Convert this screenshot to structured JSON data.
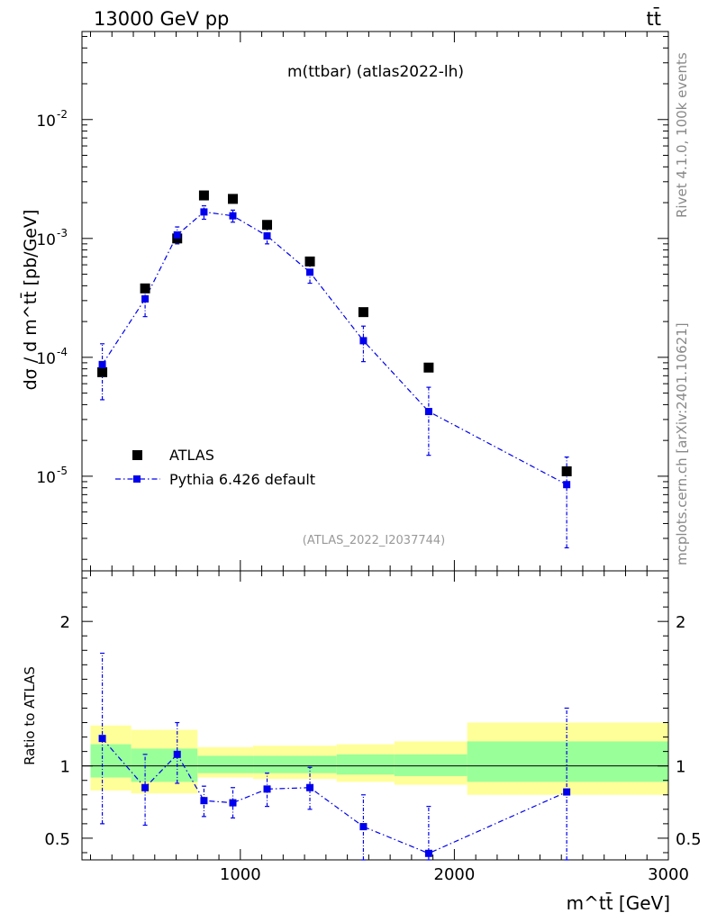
{
  "header": {
    "left": "13000 GeV pp",
    "right": "tt̄"
  },
  "side": {
    "rivet": "Rivet 4.1.0,  100k events",
    "mcplots": "mcplots.cern.ch [arXiv:2401.10621]"
  },
  "chart_data": [
    {
      "type": "scatter",
      "panel": "main",
      "title": "m(ttbar) (atlas2022-lh)",
      "analysis_label": "(ATLAS_2022_I2037744)",
      "ylabel": "dσ / d m^tt̄ [pb/GeV]",
      "yscale": "log",
      "xlim": [
        260,
        3000
      ],
      "ylim": [
        1.6e-06,
        0.055
      ],
      "ytick_labels": [
        {
          "exp": "-5",
          "value": 1e-05
        },
        {
          "exp": "-4",
          "value": 0.0001
        },
        {
          "exp": "-3",
          "value": 0.001
        },
        {
          "exp": "-2",
          "value": 0.01
        }
      ],
      "legend_position": "lower-left",
      "series": [
        {
          "name": "ATLAS",
          "color": "#000000",
          "points": [
            {
              "x": 355,
              "y": 7.5e-05
            },
            {
              "x": 555,
              "y": 0.00038
            },
            {
              "x": 705,
              "y": 0.001
            },
            {
              "x": 830,
              "y": 0.0023
            },
            {
              "x": 965,
              "y": 0.00215
            },
            {
              "x": 1125,
              "y": 0.0013
            },
            {
              "x": 1325,
              "y": 0.00064
            },
            {
              "x": 1575,
              "y": 0.00024
            },
            {
              "x": 1880,
              "y": 8.2e-05
            },
            {
              "x": 2525,
              "y": 1.1e-05
            }
          ]
        },
        {
          "name": "Pythia 6.426 default",
          "color": "#0000ee",
          "points": [
            {
              "x": 355,
              "y": 8.7e-05,
              "lo": 4.4e-05,
              "hi": 0.00013
            },
            {
              "x": 555,
              "y": 0.00031,
              "lo": 0.00022,
              "hi": 0.00039
            },
            {
              "x": 705,
              "y": 0.00107,
              "lo": 0.0009,
              "hi": 0.00125
            },
            {
              "x": 830,
              "y": 0.00167,
              "lo": 0.00145,
              "hi": 0.00188
            },
            {
              "x": 965,
              "y": 0.00155,
              "lo": 0.00137,
              "hi": 0.00173
            },
            {
              "x": 1125,
              "y": 0.00105,
              "lo": 0.0009,
              "hi": 0.0012
            },
            {
              "x": 1325,
              "y": 0.00052,
              "lo": 0.00042,
              "hi": 0.00062
            },
            {
              "x": 1575,
              "y": 0.000138,
              "lo": 9.2e-05,
              "hi": 0.000183
            },
            {
              "x": 1880,
              "y": 3.5e-05,
              "lo": 1.5e-05,
              "hi": 5.6e-05
            },
            {
              "x": 2525,
              "y": 8.5e-06,
              "lo": 2.5e-06,
              "hi": 1.45e-05
            }
          ]
        }
      ]
    },
    {
      "type": "scatter",
      "panel": "ratio",
      "ylabel": "Ratio to ATLAS",
      "xlabel": "m^tt̄ [GeV]",
      "xlim": [
        260,
        3000
      ],
      "ylim": [
        0.35,
        2.35
      ],
      "xticks": [
        1000,
        2000,
        3000
      ],
      "xtick_labels": [
        "1000",
        "2000",
        "3000"
      ],
      "yticks": [
        0.5,
        1,
        2
      ],
      "ytick_labels": [
        "0.5",
        "1",
        "2"
      ],
      "uncertainty_bands": [
        {
          "x0": 300,
          "x1": 490,
          "inner": [
            0.92,
            1.15
          ],
          "outer": [
            0.83,
            1.28
          ]
        },
        {
          "x0": 490,
          "x1": 800,
          "inner": [
            0.89,
            1.12
          ],
          "outer": [
            0.81,
            1.25
          ]
        },
        {
          "x0": 800,
          "x1": 1060,
          "inner": [
            0.95,
            1.07
          ],
          "outer": [
            0.92,
            1.13
          ]
        },
        {
          "x0": 1060,
          "x1": 1450,
          "inner": [
            0.95,
            1.07
          ],
          "outer": [
            0.91,
            1.14
          ]
        },
        {
          "x0": 1450,
          "x1": 1720,
          "inner": [
            0.94,
            1.08
          ],
          "outer": [
            0.89,
            1.15
          ]
        },
        {
          "x0": 1720,
          "x1": 2060,
          "inner": [
            0.93,
            1.08
          ],
          "outer": [
            0.87,
            1.17
          ]
        },
        {
          "x0": 2060,
          "x1": 3000,
          "inner": [
            0.89,
            1.17
          ],
          "outer": [
            0.8,
            1.3
          ]
        }
      ],
      "band_colors": {
        "inner": "#99ff99",
        "outer": "#ffff99"
      },
      "series": [
        {
          "name": "Pythia 6.426 default / ATLAS",
          "color": "#0000ee",
          "points": [
            {
              "x": 355,
              "y": 1.19,
              "lo": 0.6,
              "hi": 1.78
            },
            {
              "x": 555,
              "y": 0.85,
              "lo": 0.59,
              "hi": 1.08
            },
            {
              "x": 705,
              "y": 1.08,
              "lo": 0.88,
              "hi": 1.3
            },
            {
              "x": 830,
              "y": 0.76,
              "lo": 0.65,
              "hi": 0.86
            },
            {
              "x": 965,
              "y": 0.745,
              "lo": 0.64,
              "hi": 0.85
            },
            {
              "x": 1125,
              "y": 0.84,
              "lo": 0.72,
              "hi": 0.95
            },
            {
              "x": 1325,
              "y": 0.85,
              "lo": 0.7,
              "hi": 0.99
            },
            {
              "x": 1575,
              "y": 0.58,
              "lo": 0.35,
              "hi": 0.8
            },
            {
              "x": 1880,
              "y": 0.395,
              "lo": 0.35,
              "hi": 0.72
            },
            {
              "x": 2525,
              "y": 0.82,
              "lo": 0.35,
              "hi": 1.4
            }
          ]
        }
      ]
    }
  ]
}
